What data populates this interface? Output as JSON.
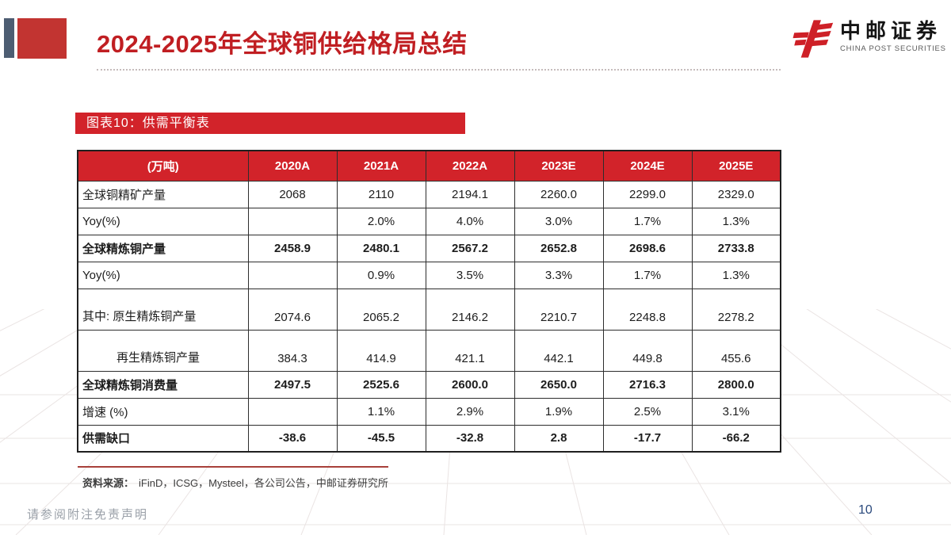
{
  "colors": {
    "accent_red": "#d2232a",
    "title_red": "#c01e22",
    "deco_red": "#c23431",
    "slate": "#4d5d72",
    "page_navy": "#2b4a7d"
  },
  "header": {
    "title": "2024-2025年全球铜供给格局总结"
  },
  "logo": {
    "name": "中邮证券",
    "subtitle": "CHINA POST SECURITIES"
  },
  "figure": {
    "caption": "图表10：供需平衡表"
  },
  "source": {
    "label": "资料来源：",
    "text": "iFinD，ICSG，Mysteel，各公司公告，中邮证券研究所"
  },
  "footer": {
    "disclaimer": "请参阅附注免责声明",
    "page_number": "10"
  },
  "chart_data": {
    "type": "table",
    "title": "供需平衡表",
    "unit_header": "(万吨)",
    "columns": [
      "2020A",
      "2021A",
      "2022A",
      "2023E",
      "2024E",
      "2025E"
    ],
    "rows": [
      {
        "label": "全球铜精矿产量",
        "values": [
          "2068",
          "2110",
          "2194.1",
          "2260.0",
          "2299.0",
          "2329.0"
        ],
        "bold": false,
        "tall": false,
        "indent": false
      },
      {
        "label": "Yoy(%)",
        "values": [
          "",
          "2.0%",
          "4.0%",
          "3.0%",
          "1.7%",
          "1.3%"
        ],
        "bold": false,
        "tall": false,
        "indent": false
      },
      {
        "label": "全球精炼铜产量",
        "values": [
          "2458.9",
          "2480.1",
          "2567.2",
          "2652.8",
          "2698.6",
          "2733.8"
        ],
        "bold": true,
        "tall": false,
        "indent": false
      },
      {
        "label": "Yoy(%)",
        "values": [
          "",
          "0.9%",
          "3.5%",
          "3.3%",
          "1.7%",
          "1.3%"
        ],
        "bold": false,
        "tall": false,
        "indent": false
      },
      {
        "label": "其中: 原生精炼铜产量",
        "values": [
          "2074.6",
          "2065.2",
          "2146.2",
          "2210.7",
          "2248.8",
          "2278.2"
        ],
        "bold": false,
        "tall": true,
        "indent": false
      },
      {
        "label": "再生精炼铜产量",
        "values": [
          "384.3",
          "414.9",
          "421.1",
          "442.1",
          "449.8",
          "455.6"
        ],
        "bold": false,
        "tall": true,
        "indent": true
      },
      {
        "label": "全球精炼铜消费量",
        "values": [
          "2497.5",
          "2525.6",
          "2600.0",
          "2650.0",
          "2716.3",
          "2800.0"
        ],
        "bold": true,
        "tall": false,
        "indent": false
      },
      {
        "label": "增速 (%)",
        "values": [
          "",
          "1.1%",
          "2.9%",
          "1.9%",
          "2.5%",
          "3.1%"
        ],
        "bold": false,
        "tall": false,
        "indent": false
      },
      {
        "label": "供需缺口",
        "values": [
          "-38.6",
          "-45.5",
          "-32.8",
          "2.8",
          "-17.7",
          "-66.2"
        ],
        "bold": true,
        "tall": false,
        "indent": false
      }
    ]
  }
}
